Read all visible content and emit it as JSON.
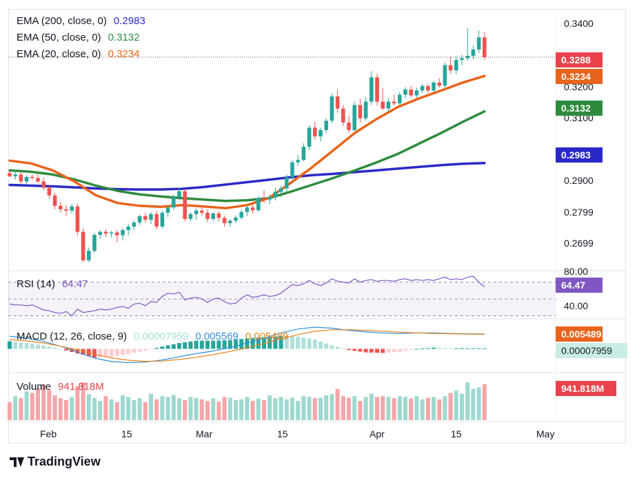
{
  "chart_data": {
    "type": "candlestick",
    "price_panel": {
      "legend": [
        {
          "label": "EMA (200, close, 0)",
          "value": "0.2983",
          "color": "#2b28c8"
        },
        {
          "label": "EMA (50, close, 0)",
          "value": "0.3132",
          "color": "#2e8b3e"
        },
        {
          "label": "EMA (20, close, 0)",
          "value": "0.3234",
          "color": "#e8631c"
        }
      ],
      "y_ticks": [
        "0.3400",
        "0.3200",
        "0.3100",
        "0.2900",
        "0.2799",
        "0.2699"
      ],
      "ylim": [
        0.2675,
        0.3425
      ],
      "last_price_label": "0.3288",
      "ema_labels": [
        "0.3234",
        "0.3132",
        "0.2983"
      ],
      "candles": [
        [
          0.2954,
          0.2962,
          0.2942,
          0.2945
        ],
        [
          0.2945,
          0.296,
          0.2935,
          0.295
        ],
        [
          0.295,
          0.2957,
          0.2924,
          0.293
        ],
        [
          0.293,
          0.2948,
          0.292,
          0.2943
        ],
        [
          0.2943,
          0.295,
          0.2935,
          0.294
        ],
        [
          0.294,
          0.2952,
          0.2925,
          0.293
        ],
        [
          0.293,
          0.2942,
          0.2905,
          0.2912
        ],
        [
          0.2912,
          0.2918,
          0.288,
          0.289
        ],
        [
          0.289,
          0.2898,
          0.285,
          0.286
        ],
        [
          0.286,
          0.2872,
          0.284,
          0.285
        ],
        [
          0.285,
          0.2862,
          0.283,
          0.2846
        ],
        [
          0.2846,
          0.2865,
          0.2838,
          0.2858
        ],
        [
          0.2858,
          0.2866,
          0.2775,
          0.2785
        ],
        [
          0.2785,
          0.2795,
          0.2698,
          0.2703
        ],
        [
          0.2703,
          0.274,
          0.2698,
          0.273
        ],
        [
          0.273,
          0.2782,
          0.2725,
          0.2776
        ],
        [
          0.2776,
          0.279,
          0.2765,
          0.2785
        ],
        [
          0.2785,
          0.2792,
          0.277,
          0.278
        ],
        [
          0.278,
          0.2788,
          0.2768,
          0.2783
        ],
        [
          0.2783,
          0.279,
          0.2755,
          0.2775
        ],
        [
          0.2775,
          0.2796,
          0.276,
          0.279
        ],
        [
          0.279,
          0.2808,
          0.2775,
          0.28
        ],
        [
          0.28,
          0.2818,
          0.279,
          0.2812
        ],
        [
          0.2812,
          0.2835,
          0.2805,
          0.283
        ],
        [
          0.283,
          0.284,
          0.2812,
          0.282
        ],
        [
          0.282,
          0.2842,
          0.2808,
          0.2836
        ],
        [
          0.2836,
          0.2845,
          0.279,
          0.28
        ],
        [
          0.28,
          0.2845,
          0.2795,
          0.284
        ],
        [
          0.284,
          0.286,
          0.2828,
          0.2855
        ],
        [
          0.2855,
          0.2892,
          0.2848,
          0.2885
        ],
        [
          0.2885,
          0.2912,
          0.2875,
          0.2902
        ],
        [
          0.2902,
          0.2908,
          0.2815,
          0.2822
        ],
        [
          0.2822,
          0.2842,
          0.2815,
          0.2836
        ],
        [
          0.2836,
          0.2852,
          0.282,
          0.2846
        ],
        [
          0.2846,
          0.2858,
          0.2832,
          0.284
        ],
        [
          0.284,
          0.285,
          0.2812,
          0.2822
        ],
        [
          0.2822,
          0.2842,
          0.2815,
          0.2838
        ],
        [
          0.2838,
          0.2845,
          0.2815,
          0.2825
        ],
        [
          0.2825,
          0.2832,
          0.28,
          0.281
        ],
        [
          0.281,
          0.2822,
          0.28,
          0.2817
        ],
        [
          0.2817,
          0.2832,
          0.281,
          0.2826
        ],
        [
          0.2826,
          0.2848,
          0.282,
          0.2842
        ],
        [
          0.2842,
          0.2862,
          0.283,
          0.2855
        ],
        [
          0.2855,
          0.287,
          0.2838,
          0.2847
        ],
        [
          0.2847,
          0.2888,
          0.2842,
          0.2882
        ],
        [
          0.2882,
          0.2905,
          0.2868,
          0.2878
        ],
        [
          0.2878,
          0.2892,
          0.2865,
          0.2885
        ],
        [
          0.2885,
          0.2912,
          0.2875,
          0.29
        ],
        [
          0.29,
          0.2918,
          0.2885,
          0.291
        ],
        [
          0.291,
          0.295,
          0.2898,
          0.2942
        ],
        [
          0.2942,
          0.2992,
          0.2935,
          0.2985
        ],
        [
          0.2985,
          0.3008,
          0.2975,
          0.2992
        ],
        [
          0.2992,
          0.304,
          0.2988,
          0.303
        ],
        [
          0.303,
          0.3092,
          0.302,
          0.3085
        ],
        [
          0.3085,
          0.3102,
          0.305,
          0.306
        ],
        [
          0.306,
          0.3085,
          0.3045,
          0.3078
        ],
        [
          0.3078,
          0.3112,
          0.307,
          0.3105
        ],
        [
          0.3105,
          0.3185,
          0.3098,
          0.3175
        ],
        [
          0.3175,
          0.3195,
          0.3128,
          0.314
        ],
        [
          0.314,
          0.315,
          0.309,
          0.31
        ],
        [
          0.31,
          0.312,
          0.307,
          0.3078
        ],
        [
          0.3078,
          0.316,
          0.3075,
          0.315
        ],
        [
          0.315,
          0.3168,
          0.31,
          0.3112
        ],
        [
          0.3112,
          0.3172,
          0.3105,
          0.316
        ],
        [
          0.316,
          0.3248,
          0.315,
          0.323
        ],
        [
          0.323,
          0.324,
          0.3148,
          0.316
        ],
        [
          0.316,
          0.32,
          0.3135,
          0.314
        ],
        [
          0.314,
          0.317,
          0.313,
          0.316
        ],
        [
          0.316,
          0.318,
          0.3148,
          0.3155
        ],
        [
          0.3155,
          0.3188,
          0.315,
          0.318
        ],
        [
          0.318,
          0.3202,
          0.317,
          0.3195
        ],
        [
          0.3195,
          0.3205,
          0.3172,
          0.3178
        ],
        [
          0.3178,
          0.32,
          0.317,
          0.3192
        ],
        [
          0.3192,
          0.3212,
          0.3185,
          0.3205
        ],
        [
          0.3205,
          0.321,
          0.3185,
          0.3192
        ],
        [
          0.3192,
          0.322,
          0.3188,
          0.3215
        ],
        [
          0.3215,
          0.3228,
          0.32,
          0.3206
        ],
        [
          0.3206,
          0.3272,
          0.32,
          0.3265
        ],
        [
          0.3265,
          0.329,
          0.324,
          0.325
        ],
        [
          0.325,
          0.329,
          0.324,
          0.328
        ],
        [
          0.328,
          0.3295,
          0.3265,
          0.3285
        ],
        [
          0.3285,
          0.3372,
          0.3278,
          0.3292
        ],
        [
          0.3292,
          0.3322,
          0.3282,
          0.331
        ],
        [
          0.331,
          0.3365,
          0.33,
          0.3345
        ],
        [
          0.3345,
          0.336,
          0.328,
          0.3288
        ]
      ],
      "ema200": [
        0.292,
        0.2918,
        0.2916,
        0.2913,
        0.291,
        0.2908,
        0.2907,
        0.2907,
        0.2909,
        0.2914,
        0.2921,
        0.2928,
        0.2935,
        0.2942,
        0.2948,
        0.2952,
        0.2957,
        0.2962,
        0.2967,
        0.2972,
        0.2977,
        0.2981,
        0.2983
      ],
      "ema50": [
        0.2962,
        0.2958,
        0.295,
        0.2936,
        0.2918,
        0.2903,
        0.2893,
        0.2887,
        0.2882,
        0.2878,
        0.2874,
        0.2876,
        0.2882,
        0.29,
        0.292,
        0.294,
        0.2962,
        0.2985,
        0.301,
        0.304,
        0.307,
        0.3102,
        0.3132
      ],
      "ema20": [
        0.299,
        0.2982,
        0.2962,
        0.293,
        0.289,
        0.2868,
        0.286,
        0.2857,
        0.2862,
        0.2858,
        0.2853,
        0.2862,
        0.2882,
        0.2925,
        0.297,
        0.302,
        0.307,
        0.311,
        0.3145,
        0.317,
        0.3192,
        0.3215,
        0.3234
      ]
    },
    "rsi_panel": {
      "label": "RSI (14)",
      "value": "64.47",
      "y_ticks": [
        "80.00",
        "40.00"
      ],
      "ylim": [
        28,
        82
      ],
      "values": [
        44,
        43,
        43,
        42,
        43,
        40,
        37,
        36,
        34,
        33,
        35,
        30,
        38,
        34,
        35,
        36,
        38,
        37,
        38,
        40,
        41,
        39,
        44,
        45,
        42,
        47,
        46,
        53,
        57,
        56,
        58,
        49,
        51,
        52,
        50,
        46,
        50,
        51,
        47,
        44,
        45,
        51,
        55,
        52,
        53,
        55,
        53,
        54,
        57,
        62,
        67,
        66,
        68,
        72,
        68,
        66,
        69,
        74,
        71,
        70,
        69,
        74,
        70,
        72,
        73,
        71,
        72,
        72,
        71,
        73,
        74,
        72,
        73,
        72,
        73,
        72,
        74,
        76,
        73,
        74,
        73,
        76,
        77,
        70,
        64.47
      ]
    },
    "macd_panel": {
      "label": "MACD (12, 26, close, 9)",
      "values": [
        "0.00007959",
        "0.005569",
        "0.005489"
      ],
      "colors": [
        "#a7e3d6",
        "#2f8fd8",
        "#e8831c"
      ],
      "macd_line": [
        0.0048,
        0.004,
        0.0028,
        0.001,
        -0.0012,
        -0.0035,
        -0.0048,
        -0.0052,
        -0.005,
        -0.0042,
        -0.003,
        -0.0018,
        -0.0008,
        0.0005,
        0.0022,
        0.004,
        0.006,
        0.0075,
        0.0082,
        0.0078,
        0.007,
        0.0064,
        0.006,
        0.0058,
        0.006,
        0.006,
        0.0058,
        0.0057,
        0.0056
      ],
      "signal_line": [
        0.0035,
        0.003,
        0.0022,
        0.001,
        -0.0004,
        -0.002,
        -0.0034,
        -0.0043,
        -0.0047,
        -0.0046,
        -0.004,
        -0.0032,
        -0.0022,
        -0.001,
        0.0004,
        0.002,
        0.0038,
        0.0054,
        0.0066,
        0.0072,
        0.0072,
        0.007,
        0.0067,
        0.0063,
        0.006,
        0.0058,
        0.0057,
        0.0056,
        0.0055
      ]
    },
    "volume_panel": {
      "label": "Volume",
      "value": "941.818M",
      "values": [
        0.45,
        0.6,
        0.55,
        0.72,
        0.68,
        0.8,
        0.88,
        0.75,
        0.62,
        0.55,
        0.5,
        0.58,
        0.85,
        0.95,
        0.65,
        0.55,
        0.48,
        0.6,
        0.52,
        0.45,
        0.62,
        0.58,
        0.5,
        0.55,
        0.45,
        0.66,
        0.52,
        0.6,
        0.58,
        0.63,
        0.55,
        0.5,
        0.58,
        0.56,
        0.52,
        0.48,
        0.55,
        0.46,
        0.58,
        0.56,
        0.5,
        0.52,
        0.58,
        0.48,
        0.54,
        0.5,
        0.62,
        0.55,
        0.58,
        0.52,
        0.56,
        0.48,
        0.6,
        0.58,
        0.55,
        0.56,
        0.62,
        0.65,
        0.78,
        0.6,
        0.56,
        0.6,
        0.48,
        0.58,
        0.66,
        0.58,
        0.6,
        0.58,
        0.55,
        0.6,
        0.58,
        0.54,
        0.6,
        0.52,
        0.56,
        0.58,
        0.52,
        0.6,
        0.68,
        0.74,
        0.66,
        0.95,
        0.78,
        0.82,
        0.9
      ]
    },
    "x_ticks": [
      {
        "label": "Feb",
        "day": 0
      },
      {
        "label": "15",
        "day": 14
      },
      {
        "label": "Mar",
        "day": 29
      },
      {
        "label": "15",
        "day": 43
      },
      {
        "label": "Apr",
        "day": 60
      },
      {
        "label": "15",
        "day": 74
      },
      {
        "label": "May",
        "day": 90
      }
    ]
  },
  "branding": {
    "logo_text": "TradingView"
  }
}
